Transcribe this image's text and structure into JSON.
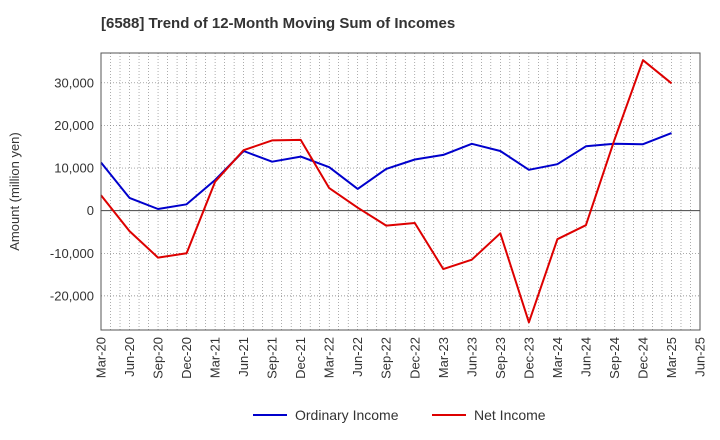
{
  "chart_data": {
    "type": "line",
    "title": "[6588]  Trend of 12-Month Moving Sum of Incomes",
    "xlabel": "",
    "ylabel": "Amount (million yen)",
    "ylim": [
      -28000,
      37000
    ],
    "yticks": [
      -20000,
      -10000,
      0,
      10000,
      20000,
      30000
    ],
    "ytick_labels": [
      "-20,000",
      "-10,000",
      "0",
      "10,000",
      "20,000",
      "30,000"
    ],
    "categories": [
      "Mar-20",
      "Jun-20",
      "Sep-20",
      "Dec-20",
      "Mar-21",
      "Jun-21",
      "Sep-21",
      "Dec-21",
      "Mar-22",
      "Jun-22",
      "Sep-22",
      "Dec-22",
      "Mar-23",
      "Jun-23",
      "Sep-23",
      "Dec-23",
      "Mar-24",
      "Jun-24",
      "Sep-24",
      "Dec-24",
      "Mar-25",
      "Jun-25"
    ],
    "grid": true,
    "legend_position": "bottom",
    "series": [
      {
        "name": "Ordinary Income",
        "color": "#0000cc",
        "values": [
          11300,
          3000,
          400,
          1500,
          7200,
          14000,
          11500,
          12700,
          10200,
          5100,
          9800,
          12000,
          13100,
          15700,
          14000,
          9600,
          10900,
          15100,
          15700,
          15600,
          18200,
          null
        ]
      },
      {
        "name": "Net Income",
        "color": "#dd0000",
        "values": [
          3600,
          -4800,
          -11000,
          -10000,
          6800,
          14200,
          16500,
          16600,
          5300,
          700,
          -3500,
          -2900,
          -13700,
          -11500,
          -5300,
          -26200,
          -6700,
          -3400,
          16600,
          35300,
          29900,
          null
        ]
      }
    ]
  }
}
